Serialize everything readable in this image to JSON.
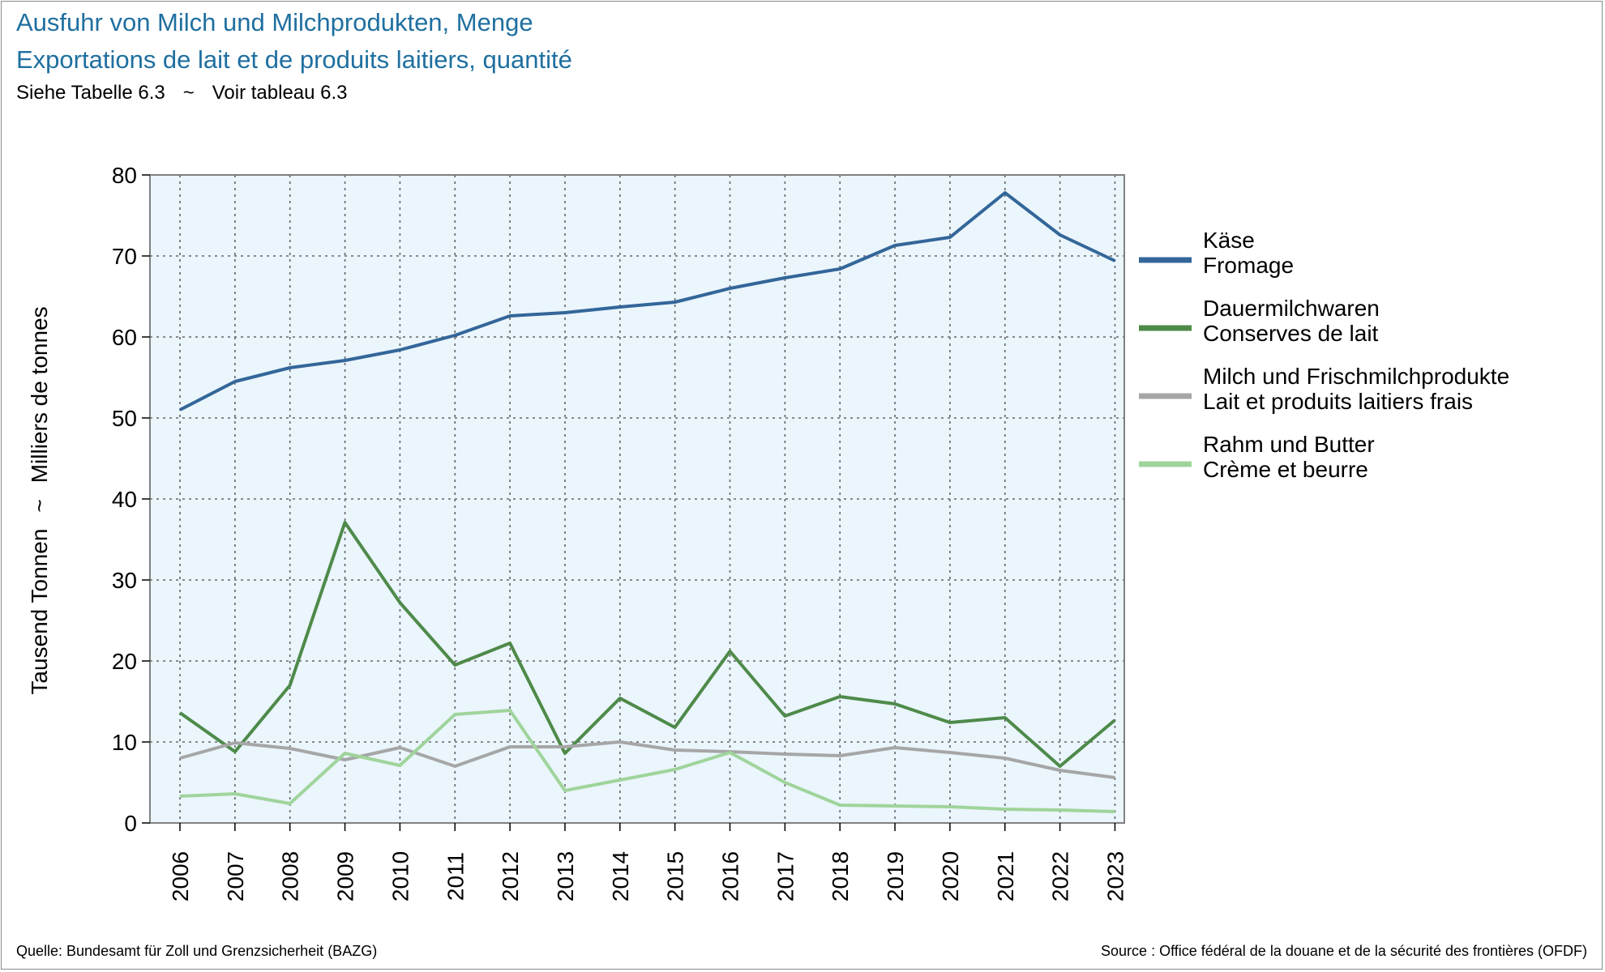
{
  "header": {
    "title_de": "Ausfuhr von Milch und Milchprodukten, Menge",
    "title_fr": "Exportations de lait et de produits laitiers, quantité",
    "subtitle_de": "Siehe Tabelle 6.3",
    "subtitle_sep": "~",
    "subtitle_fr": "Voir tableau 6.3"
  },
  "footer": {
    "source_de": "Quelle: Bundesamt für Zoll und Grenzsicherheit (BAZG)",
    "source_fr": "Source : Office fédéral de la douane et de la sécurité des frontières (OFDF)"
  },
  "colors": {
    "title": "#1f6fa0",
    "plot_background": "#eaf5fc",
    "grid": "#666666"
  },
  "chart_data": {
    "type": "line",
    "ylabel_de": "Tausend Tonnen",
    "ylabel_sep": "~",
    "ylabel_fr": "Milliers de tonnes",
    "x": [
      "2006",
      "2007",
      "2008",
      "2009",
      "2010",
      "2011",
      "2012",
      "2013",
      "2014",
      "2015",
      "2016",
      "2017",
      "2018",
      "2019",
      "2020",
      "2021",
      "2022",
      "2023"
    ],
    "ylim": [
      0,
      80
    ],
    "yticks": [
      0,
      10,
      20,
      30,
      40,
      50,
      60,
      70,
      80
    ],
    "grid": true,
    "legend_position": "right",
    "series": [
      {
        "name_de": "Käse",
        "name_fr": "Fromage",
        "color": "#336699",
        "values": [
          51.0,
          54.5,
          56.2,
          57.1,
          58.4,
          60.2,
          62.6,
          63.0,
          63.7,
          64.3,
          66.0,
          67.3,
          68.4,
          71.3,
          72.3,
          77.8,
          72.6,
          69.4
        ]
      },
      {
        "name_de": "Dauermilchwaren",
        "name_fr": "Conserves de lait",
        "color": "#4e8a4a",
        "values": [
          13.6,
          8.8,
          17.0,
          37.1,
          27.2,
          19.5,
          22.2,
          8.6,
          15.4,
          11.8,
          21.2,
          13.2,
          15.6,
          14.7,
          12.4,
          13.0,
          7.0,
          12.7
        ]
      },
      {
        "name_de": "Milch und Frischmilchprodukte",
        "name_fr": "Lait et produits laitiers frais",
        "color": "#a6a6a6",
        "values": [
          8.0,
          9.9,
          9.2,
          7.8,
          9.3,
          7.0,
          9.4,
          9.4,
          10.0,
          9.0,
          8.8,
          8.5,
          8.3,
          9.3,
          8.7,
          8.0,
          6.5,
          5.6
        ]
      },
      {
        "name_de": "Rahm und Butter",
        "name_fr": "Crème et beurre",
        "color": "#9fd49b",
        "values": [
          3.3,
          3.6,
          2.4,
          8.6,
          7.1,
          13.4,
          13.9,
          4.0,
          5.3,
          6.6,
          8.7,
          5.0,
          2.2,
          2.1,
          2.0,
          1.7,
          1.6,
          1.4
        ]
      }
    ]
  }
}
